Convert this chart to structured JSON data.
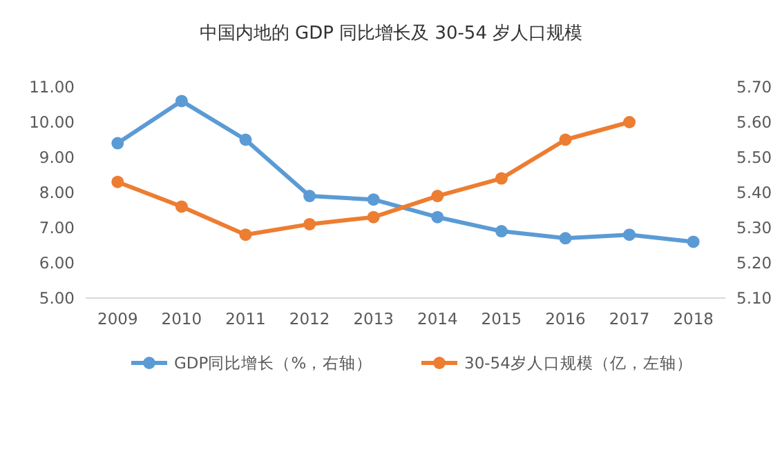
{
  "chart_data": {
    "type": "line",
    "title": "中国内地的 GDP 同比增长及 30-54 岁人口规模",
    "categories": [
      "2009",
      "2010",
      "2011",
      "2012",
      "2013",
      "2014",
      "2015",
      "2016",
      "2017",
      "2018"
    ],
    "series": [
      {
        "name": "GDP同比增长（%，右轴）",
        "color": "#5b9bd5",
        "values": [
          9.4,
          10.6,
          9.5,
          7.9,
          7.8,
          7.3,
          6.9,
          6.7,
          6.8,
          6.6
        ]
      },
      {
        "name": "30-54岁人口规模（亿，左轴）",
        "color": "#ed7d31",
        "axis": "y2",
        "values": [
          5.43,
          5.36,
          5.28,
          5.31,
          5.33,
          5.39,
          5.44,
          5.55,
          5.6,
          null
        ]
      }
    ],
    "ylim": [
      5,
      11
    ],
    "yticks": [
      {
        "value": 5,
        "label": "5.00"
      },
      {
        "value": 6,
        "label": "6.00"
      },
      {
        "value": 7,
        "label": "7.00"
      },
      {
        "value": 8,
        "label": "8.00"
      },
      {
        "value": 9,
        "label": "9.00"
      },
      {
        "value": 10,
        "label": "10.00"
      },
      {
        "value": 11,
        "label": "11.00"
      }
    ],
    "y2lim": [
      5.1,
      5.7
    ],
    "y2ticks": [
      {
        "value": 5.1,
        "label": "5.10"
      },
      {
        "value": 5.2,
        "label": "5.20"
      },
      {
        "value": 5.3,
        "label": "5.30"
      },
      {
        "value": 5.4,
        "label": "5.40"
      },
      {
        "value": 5.5,
        "label": "5.50"
      },
      {
        "value": 5.6,
        "label": "5.60"
      },
      {
        "value": 5.7,
        "label": "5.70"
      }
    ],
    "legend": "bottom",
    "marker": "circle",
    "grid": false
  }
}
